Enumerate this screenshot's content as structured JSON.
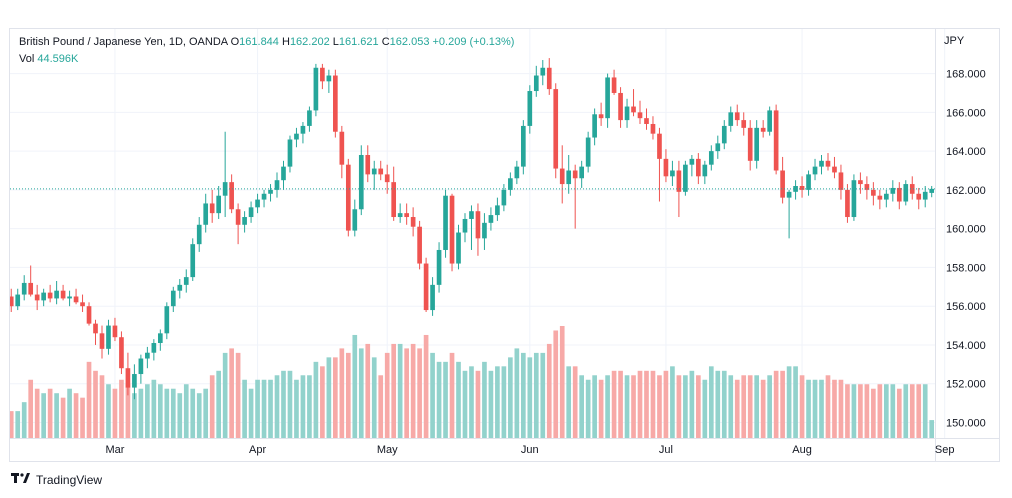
{
  "header": {
    "symbol": "British Pound / Japanese Yen, 1D, OANDA",
    "open_label": "O",
    "open": "161.844",
    "high_label": "H",
    "high": "162.202",
    "low_label": "L",
    "low": "161.621",
    "close_label": "C",
    "close": "162.053",
    "change": "+0.209 (+0.13%)",
    "vol_label": "Vol",
    "vol": "44.596K"
  },
  "currency": "JPY",
  "brand": "TradingView",
  "colors": {
    "up": "#26a69a",
    "down": "#ef5350",
    "up_vol": "#92d2cc",
    "down_vol": "#f7a9a7",
    "last_price_line": "#26a69a",
    "grid": "#f0f3fa"
  },
  "chart_data": {
    "type": "candlestick",
    "ylim": [
      149.2,
      170.3
    ],
    "y_ticks": [
      150,
      152,
      154,
      156,
      158,
      160,
      162,
      164,
      166,
      168
    ],
    "y_tick_labels": [
      "150.000",
      "152.000",
      "154.000",
      "156.000",
      "158.000",
      "160.000",
      "162.000",
      "164.000",
      "166.000",
      "168.000"
    ],
    "x_labels": [
      {
        "label": "Mar",
        "index": 16
      },
      {
        "label": "Apr",
        "index": 38
      },
      {
        "label": "May",
        "index": 58
      },
      {
        "label": "Jun",
        "index": 80
      },
      {
        "label": "Jul",
        "index": 101
      },
      {
        "label": "Aug",
        "index": 122
      },
      {
        "label": "Sep",
        "index": 144
      }
    ],
    "last_price": 162.053,
    "grid": true,
    "candles": [
      [
        156.5,
        156.9,
        155.7,
        156.0,
        6
      ],
      [
        156.0,
        156.9,
        155.8,
        156.6,
        6
      ],
      [
        156.6,
        157.6,
        156.3,
        157.2,
        8
      ],
      [
        157.2,
        158.1,
        156.5,
        156.6,
        13
      ],
      [
        156.6,
        157.1,
        155.8,
        156.3,
        11
      ],
      [
        156.3,
        156.9,
        156.0,
        156.7,
        10
      ],
      [
        156.7,
        157.1,
        156.2,
        156.4,
        11
      ],
      [
        156.4,
        157.3,
        156.1,
        156.8,
        10
      ],
      [
        156.8,
        157.1,
        156.3,
        156.4,
        9
      ],
      [
        156.4,
        156.8,
        156.0,
        156.5,
        11
      ],
      [
        156.5,
        156.9,
        156.1,
        156.2,
        10
      ],
      [
        156.2,
        156.6,
        155.7,
        156.0,
        9
      ],
      [
        156.0,
        156.2,
        155.0,
        155.1,
        17
      ],
      [
        155.1,
        155.3,
        154.0,
        154.6,
        15
      ],
      [
        154.6,
        155.0,
        153.3,
        153.8,
        14
      ],
      [
        153.8,
        155.3,
        153.5,
        155.0,
        12
      ],
      [
        155.0,
        155.4,
        154.2,
        154.4,
        11
      ],
      [
        154.4,
        154.7,
        152.5,
        152.8,
        13
      ],
      [
        152.8,
        153.6,
        151.4,
        151.8,
        12
      ],
      [
        151.8,
        153.0,
        151.2,
        152.5,
        10
      ],
      [
        152.5,
        153.5,
        152.0,
        153.3,
        11
      ],
      [
        153.3,
        153.9,
        152.8,
        153.6,
        12
      ],
      [
        153.6,
        154.3,
        153.2,
        154.1,
        13
      ],
      [
        154.1,
        154.8,
        153.7,
        154.6,
        12
      ],
      [
        154.6,
        156.2,
        154.3,
        156.0,
        11
      ],
      [
        156.0,
        157.0,
        155.7,
        156.8,
        11
      ],
      [
        156.8,
        157.4,
        156.4,
        157.1,
        10
      ],
      [
        157.1,
        157.9,
        156.7,
        157.5,
        12
      ],
      [
        157.5,
        159.5,
        157.3,
        159.2,
        11
      ],
      [
        159.2,
        160.6,
        158.8,
        160.2,
        10
      ],
      [
        160.2,
        161.8,
        159.8,
        161.3,
        11
      ],
      [
        161.3,
        162.0,
        160.3,
        160.8,
        14
      ],
      [
        160.8,
        162.2,
        160.5,
        161.7,
        15
      ],
      [
        161.7,
        165.0,
        160.6,
        162.4,
        19
      ],
      [
        162.4,
        162.8,
        160.8,
        161.0,
        20
      ],
      [
        161.0,
        161.3,
        159.2,
        160.2,
        19
      ],
      [
        160.2,
        160.9,
        159.8,
        160.6,
        13
      ],
      [
        160.6,
        161.4,
        160.3,
        161.1,
        11
      ],
      [
        161.1,
        161.8,
        160.8,
        161.5,
        13
      ],
      [
        161.5,
        162.0,
        161.1,
        161.8,
        13
      ],
      [
        161.8,
        162.3,
        161.4,
        162.0,
        13
      ],
      [
        162.0,
        162.9,
        161.6,
        162.5,
        14
      ],
      [
        162.5,
        163.5,
        162.0,
        163.2,
        15
      ],
      [
        163.2,
        164.8,
        162.9,
        164.6,
        15
      ],
      [
        164.6,
        165.2,
        164.2,
        164.9,
        13
      ],
      [
        164.9,
        165.5,
        164.4,
        165.3,
        14
      ],
      [
        165.3,
        166.3,
        165.0,
        166.1,
        14
      ],
      [
        166.1,
        168.5,
        165.8,
        168.3,
        17
      ],
      [
        168.3,
        168.5,
        167.2,
        167.6,
        16
      ],
      [
        167.6,
        168.2,
        167.0,
        167.9,
        18
      ],
      [
        167.9,
        168.2,
        164.7,
        165.0,
        18
      ],
      [
        165.0,
        165.3,
        162.6,
        163.3,
        20
      ],
      [
        163.3,
        163.6,
        159.6,
        159.9,
        19
      ],
      [
        159.9,
        161.5,
        159.6,
        161.0,
        23
      ],
      [
        161.0,
        164.3,
        160.7,
        163.8,
        20
      ],
      [
        163.8,
        164.3,
        162.4,
        162.8,
        21
      ],
      [
        162.8,
        163.5,
        162.0,
        163.1,
        18
      ],
      [
        163.1,
        163.5,
        162.5,
        162.8,
        14
      ],
      [
        162.8,
        163.3,
        161.8,
        162.4,
        19
      ],
      [
        162.4,
        163.2,
        160.4,
        160.6,
        21
      ],
      [
        160.6,
        161.3,
        160.3,
        160.8,
        21
      ],
      [
        160.8,
        161.3,
        160.2,
        160.6,
        20
      ],
      [
        160.6,
        161.1,
        159.6,
        160.1,
        21
      ],
      [
        160.1,
        160.4,
        157.9,
        158.2,
        20
      ],
      [
        158.2,
        158.5,
        155.7,
        155.8,
        23
      ],
      [
        155.8,
        157.5,
        155.5,
        157.1,
        19
      ],
      [
        157.1,
        159.3,
        156.7,
        158.9,
        17
      ],
      [
        158.9,
        162.0,
        158.5,
        161.7,
        17
      ],
      [
        161.7,
        161.8,
        157.8,
        158.2,
        19
      ],
      [
        158.2,
        160.2,
        157.9,
        159.8,
        17
      ],
      [
        159.8,
        160.8,
        159.3,
        160.5,
        15
      ],
      [
        160.5,
        161.2,
        158.9,
        160.9,
        16
      ],
      [
        160.9,
        161.3,
        158.6,
        159.5,
        15
      ],
      [
        159.5,
        160.8,
        158.9,
        160.3,
        17
      ],
      [
        160.3,
        161.1,
        159.9,
        160.7,
        15
      ],
      [
        160.7,
        161.6,
        160.4,
        161.2,
        16
      ],
      [
        161.2,
        162.3,
        160.9,
        162.0,
        16
      ],
      [
        162.0,
        162.9,
        161.7,
        162.6,
        18
      ],
      [
        162.6,
        163.5,
        162.3,
        163.2,
        20
      ],
      [
        163.2,
        165.6,
        162.8,
        165.3,
        19
      ],
      [
        165.3,
        167.4,
        164.9,
        167.1,
        18
      ],
      [
        167.1,
        168.4,
        166.8,
        167.9,
        19
      ],
      [
        167.9,
        168.7,
        167.4,
        168.3,
        19
      ],
      [
        168.3,
        168.8,
        166.9,
        167.2,
        21
      ],
      [
        167.2,
        167.5,
        162.6,
        163.1,
        24
      ],
      [
        163.1,
        164.3,
        161.3,
        162.3,
        25
      ],
      [
        162.3,
        163.8,
        161.8,
        163.0,
        16
      ],
      [
        163.0,
        163.3,
        160.0,
        162.6,
        16
      ],
      [
        162.6,
        163.5,
        162.1,
        163.2,
        14
      ],
      [
        163.2,
        165.0,
        162.9,
        164.7,
        13
      ],
      [
        164.7,
        166.2,
        164.3,
        165.9,
        14
      ],
      [
        165.9,
        166.5,
        165.3,
        165.7,
        13
      ],
      [
        165.7,
        168.0,
        165.2,
        167.8,
        14
      ],
      [
        167.8,
        168.2,
        166.9,
        167.0,
        15
      ],
      [
        167.0,
        167.3,
        165.2,
        165.6,
        15
      ],
      [
        165.6,
        166.7,
        165.2,
        166.3,
        14
      ],
      [
        166.3,
        167.2,
        165.8,
        166.0,
        14
      ],
      [
        166.0,
        166.6,
        165.4,
        165.7,
        15
      ],
      [
        165.7,
        166.2,
        165.1,
        165.4,
        15
      ],
      [
        165.4,
        165.8,
        164.6,
        164.9,
        15
      ],
      [
        164.9,
        165.2,
        161.4,
        163.6,
        14
      ],
      [
        163.6,
        164.1,
        162.4,
        162.7,
        15
      ],
      [
        162.7,
        163.5,
        162.2,
        163.0,
        16
      ],
      [
        163.0,
        163.5,
        160.6,
        161.9,
        14
      ],
      [
        161.9,
        163.5,
        161.7,
        163.3,
        14
      ],
      [
        163.3,
        163.8,
        162.7,
        163.6,
        15
      ],
      [
        163.6,
        163.9,
        162.3,
        162.7,
        14
      ],
      [
        162.7,
        163.5,
        162.3,
        163.3,
        13
      ],
      [
        163.3,
        164.3,
        163.0,
        164.0,
        16
      ],
      [
        164.0,
        164.8,
        163.6,
        164.4,
        15
      ],
      [
        164.4,
        165.6,
        164.1,
        165.3,
        15
      ],
      [
        165.3,
        166.3,
        165.0,
        166.0,
        14
      ],
      [
        166.0,
        166.4,
        165.3,
        165.6,
        13
      ],
      [
        165.6,
        166.0,
        164.8,
        165.2,
        14
      ],
      [
        165.2,
        165.6,
        163.0,
        163.5,
        14
      ],
      [
        163.5,
        165.6,
        163.1,
        165.2,
        14
      ],
      [
        165.2,
        165.6,
        164.7,
        165.0,
        13
      ],
      [
        165.0,
        166.3,
        164.8,
        166.1,
        14
      ],
      [
        166.1,
        166.4,
        162.8,
        163.0,
        15
      ],
      [
        163.0,
        163.7,
        161.3,
        161.6,
        15
      ],
      [
        161.6,
        162.0,
        159.5,
        161.9,
        16
      ],
      [
        161.9,
        162.5,
        161.5,
        162.2,
        16
      ],
      [
        162.2,
        162.7,
        161.6,
        162.0,
        14
      ],
      [
        162.0,
        163.0,
        161.7,
        162.8,
        13
      ],
      [
        162.8,
        163.6,
        162.5,
        163.2,
        13
      ],
      [
        163.2,
        163.8,
        162.8,
        163.5,
        13
      ],
      [
        163.5,
        163.9,
        163.0,
        163.2,
        14
      ],
      [
        163.2,
        163.7,
        162.6,
        162.9,
        13
      ],
      [
        162.9,
        163.3,
        161.5,
        162.0,
        13
      ],
      [
        162.0,
        162.3,
        160.3,
        160.6,
        12
      ],
      [
        160.6,
        162.8,
        160.4,
        162.5,
        12
      ],
      [
        162.5,
        162.9,
        161.8,
        162.3,
        12
      ],
      [
        162.3,
        162.7,
        161.5,
        162.0,
        12
      ],
      [
        162.0,
        162.4,
        161.2,
        161.7,
        11
      ],
      [
        161.7,
        162.0,
        161.0,
        161.5,
        12
      ],
      [
        161.5,
        162.0,
        161.1,
        161.8,
        12
      ],
      [
        161.8,
        162.5,
        161.4,
        162.1,
        12
      ],
      [
        162.1,
        162.4,
        161.0,
        161.4,
        11
      ],
      [
        161.4,
        162.5,
        161.2,
        162.3,
        12
      ],
      [
        162.3,
        162.7,
        161.5,
        161.8,
        12
      ],
      [
        161.8,
        162.1,
        161.0,
        161.5,
        12
      ],
      [
        161.5,
        162.2,
        161.1,
        161.9,
        12
      ],
      [
        161.844,
        162.202,
        161.621,
        162.053,
        4
      ]
    ]
  }
}
